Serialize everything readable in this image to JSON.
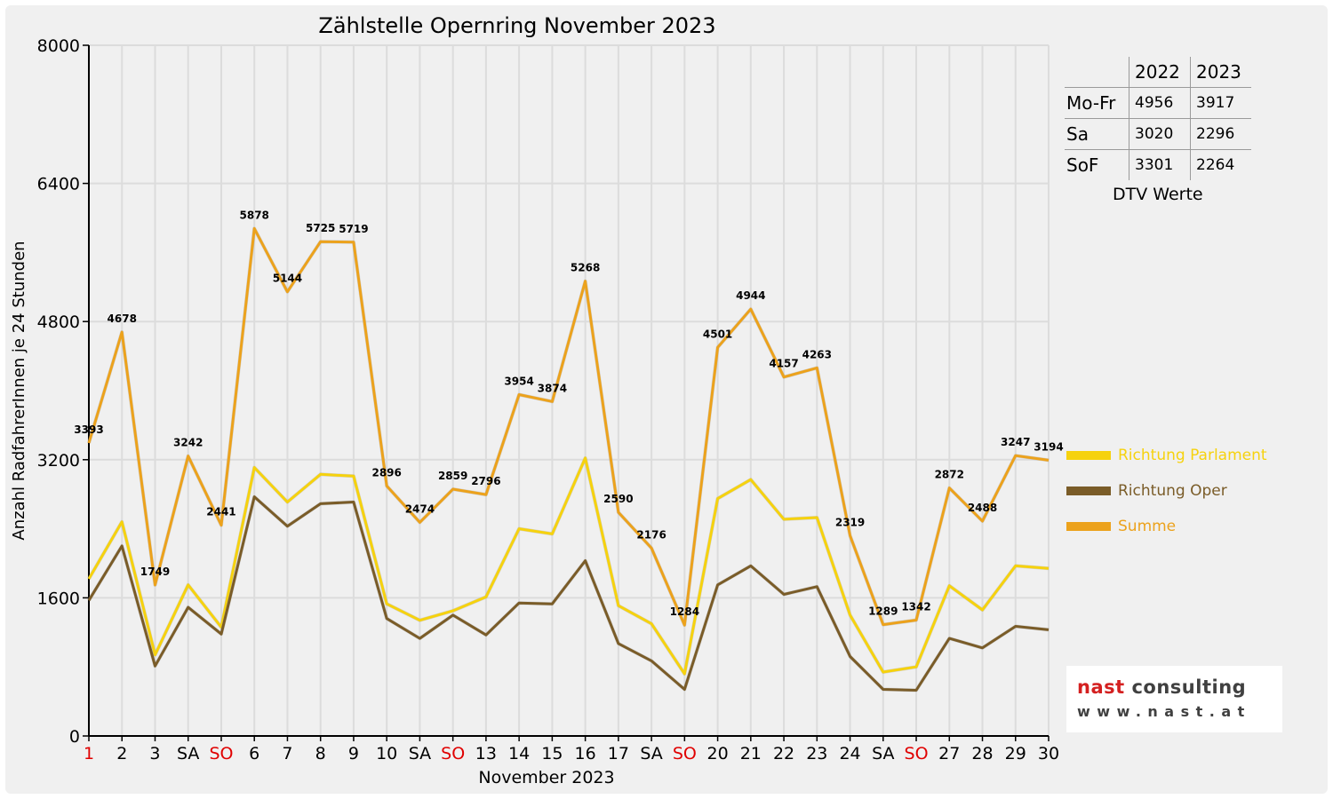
{
  "chart_data": {
    "type": "line",
    "title": "Zählstelle Opernring November 2023",
    "xlabel": "November 2023",
    "ylabel": "Anzahl RadfahrerInnen je 24 Stunden",
    "ylim": [
      0,
      8000
    ],
    "yticks": [
      0,
      1600,
      3200,
      4800,
      6400,
      8000
    ],
    "grid": true,
    "legend_position": "right",
    "categories": [
      "1",
      "2",
      "3",
      "SA",
      "SO",
      "6",
      "7",
      "8",
      "9",
      "10",
      "SA",
      "SO",
      "13",
      "14",
      "15",
      "16",
      "17",
      "SA",
      "SO",
      "20",
      "21",
      "22",
      "23",
      "24",
      "SA",
      "SO",
      "27",
      "28",
      "29",
      "30"
    ],
    "category_colors": [
      "#e00000",
      "#000000",
      "#000000",
      "#000000",
      "#e00000",
      "#000000",
      "#000000",
      "#000000",
      "#000000",
      "#000000",
      "#000000",
      "#e00000",
      "#000000",
      "#000000",
      "#000000",
      "#000000",
      "#000000",
      "#000000",
      "#e00000",
      "#000000",
      "#000000",
      "#000000",
      "#000000",
      "#000000",
      "#000000",
      "#e00000",
      "#000000",
      "#000000",
      "#000000",
      "#000000"
    ],
    "series": [
      {
        "name": "Richtung Parlament",
        "color": "#f6d20e",
        "values": [
          1820,
          2480,
          940,
          1750,
          1260,
          3110,
          2710,
          3030,
          3010,
          1530,
          1340,
          1450,
          1610,
          2400,
          2340,
          3220,
          1510,
          1300,
          720,
          2750,
          2970,
          2510,
          2530,
          1400,
          740,
          800,
          1740,
          1460,
          1970,
          1940
        ]
      },
      {
        "name": "Richtung Oper",
        "color": "#7a5c28",
        "values": [
          1570,
          2200,
          810,
          1490,
          1180,
          2770,
          2430,
          2690,
          2710,
          1360,
          1130,
          1400,
          1170,
          1540,
          1530,
          2030,
          1070,
          870,
          540,
          1750,
          1970,
          1640,
          1730,
          920,
          540,
          530,
          1130,
          1020,
          1270,
          1230
        ]
      },
      {
        "name": "Summe",
        "color": "#eca21c",
        "values": [
          3393,
          4678,
          1749,
          3242,
          2441,
          5878,
          5144,
          5725,
          5719,
          2896,
          2474,
          2859,
          2796,
          3954,
          3874,
          5268,
          2590,
          2176,
          1284,
          4501,
          4944,
          4157,
          4263,
          2319,
          1289,
          1342,
          2872,
          2488,
          3247,
          3194
        ]
      }
    ],
    "data_labels": [
      "3393",
      "4678",
      "1749",
      "3242",
      "2441",
      "5878",
      "5144",
      "5725",
      "5719",
      "2896",
      "2474",
      "2859",
      "2796",
      "3954",
      "3874",
      "5268",
      "2590",
      "2176",
      "1284",
      "4501",
      "4944",
      "4157",
      "4263",
      "2319",
      "1289",
      "1342",
      "2872",
      "2488",
      "3247",
      "3194"
    ]
  },
  "dtv_table": {
    "headers": [
      "",
      "2022",
      "2023"
    ],
    "rows": [
      {
        "label": "Mo-Fr",
        "v2022": "4956",
        "v2023": "3917"
      },
      {
        "label": "Sa",
        "v2022": "3020",
        "v2023": "2296"
      },
      {
        "label": "SoF",
        "v2022": "3301",
        "v2023": "2264"
      }
    ],
    "caption": "DTV Werte"
  },
  "logo": {
    "brand_part1": "nast",
    "brand_part2": " consulting",
    "url": "www.nast.at"
  },
  "colors": {
    "background": "#f0f0f0",
    "grid": "#dcdcdc",
    "weekend_red": "#e00000"
  }
}
